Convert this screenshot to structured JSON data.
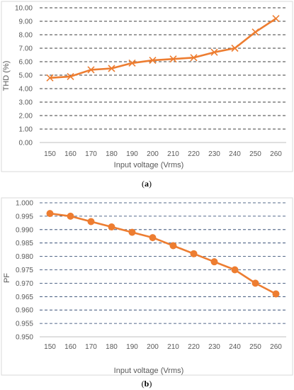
{
  "chart_data": [
    {
      "type": "line",
      "panel_label": "(a)",
      "caption_letter": "a",
      "xlabel": "Input voltage (Vrms)",
      "ylabel": "THD (%)",
      "categories": [
        "150",
        "160",
        "170",
        "180",
        "190",
        "200",
        "210",
        "220",
        "230",
        "240",
        "250",
        "260"
      ],
      "series": [
        {
          "values": [
            4.8,
            4.9,
            5.4,
            5.5,
            5.9,
            6.1,
            6.2,
            6.3,
            6.7,
            7.0,
            8.2,
            9.2
          ],
          "color": "#ED7D31",
          "marker": "x"
        }
      ],
      "ylim": [
        0,
        10
      ],
      "ytick_step": 1,
      "ytick_labels": [
        "0.00",
        "1.00",
        "2.00",
        "3.00",
        "4.00",
        "5.00",
        "6.00",
        "7.00",
        "8.00",
        "9.00",
        "10.00"
      ],
      "grid": "horizontal-dashed",
      "grid_color": "#000000"
    },
    {
      "type": "line",
      "panel_label": "(b)",
      "caption_letter": "b",
      "xlabel": "Input voltage (Vrms)",
      "ylabel": "PF",
      "categories": [
        "150",
        "160",
        "170",
        "180",
        "190",
        "200",
        "210",
        "220",
        "230",
        "240",
        "250",
        "260"
      ],
      "series": [
        {
          "values": [
            0.996,
            0.995,
            0.993,
            0.991,
            0.989,
            0.987,
            0.984,
            0.981,
            0.978,
            0.975,
            0.97,
            0.966
          ],
          "color": "#ED7D31",
          "marker": "circle"
        }
      ],
      "ylim": [
        0.95,
        1.0
      ],
      "ytick_step": 0.005,
      "ytick_labels": [
        "0.950",
        "0.955",
        "0.960",
        "0.965",
        "0.970",
        "0.975",
        "0.980",
        "0.985",
        "0.990",
        "0.995",
        "1.000"
      ],
      "grid": "horizontal-dashed",
      "grid_color": "#1F3864"
    }
  ]
}
